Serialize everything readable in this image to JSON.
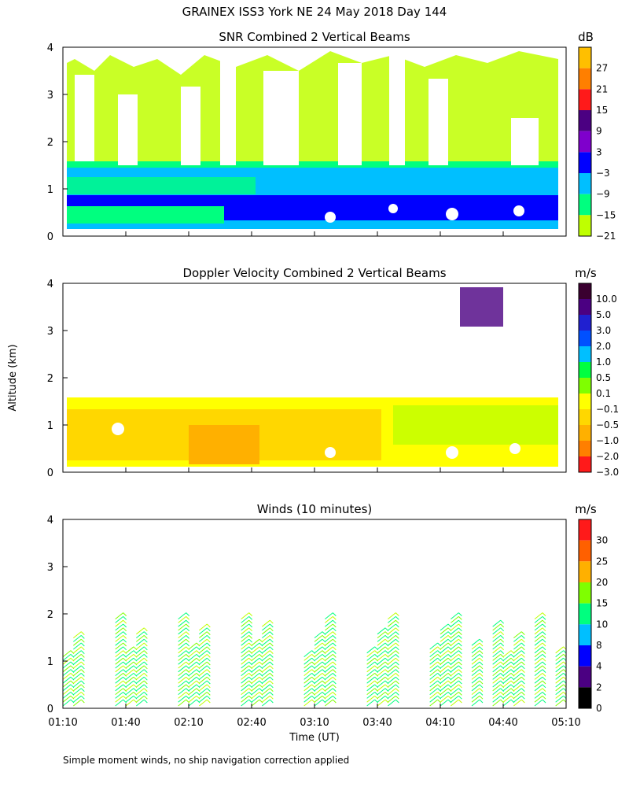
{
  "figure": {
    "title": "GRAINEX ISS3 York NE  24 May 2018 Day 144",
    "footnote": "Simple moment winds, no ship navigation correction applied",
    "ylabel": "Altitude (km)",
    "xlabel": "Time (UT)",
    "xticks": [
      "01:10",
      "01:40",
      "02:10",
      "02:40",
      "03:10",
      "03:40",
      "04:10",
      "04:40",
      "05:10"
    ]
  },
  "chart_data": [
    {
      "type": "heatmap",
      "title": "SNR Combined 2 Vertical Beams",
      "xlabel": "Time (UT)",
      "ylabel": "Altitude (km)",
      "xlim": [
        "01:10",
        "05:10"
      ],
      "ylim": [
        0,
        4
      ],
      "yticks": [
        "0",
        "1",
        "2",
        "3",
        "4"
      ],
      "colorbar": {
        "unit": "dB",
        "labels": [
          "27",
          "21",
          "15",
          "9",
          "3",
          "−3",
          "−9",
          "−15",
          "−21"
        ],
        "colors": [
          "#ffbf00",
          "#ff7f00",
          "#ff1a1a",
          "#4b0082",
          "#7f00cc",
          "#0000ff",
          "#00bfff",
          "#00ff7f",
          "#bfff00"
        ]
      },
      "description_layers": [
        {
          "altitude_km": [
            0.1,
            0.5
          ],
          "dominant_db": -3
        },
        {
          "altitude_km": [
            0.5,
            1.5
          ],
          "dominant_db": -9
        },
        {
          "altitude_km": [
            1.5,
            4.0
          ],
          "dominant_db": -21
        }
      ]
    },
    {
      "type": "heatmap",
      "title": "Doppler Velocity Combined 2 Vertical Beams",
      "xlabel": "Time (UT)",
      "ylabel": "Altitude (km)",
      "xlim": [
        "01:10",
        "05:10"
      ],
      "ylim": [
        0,
        4
      ],
      "yticks": [
        "0",
        "1",
        "2",
        "3",
        "4"
      ],
      "colorbar": {
        "unit": "m/s",
        "labels": [
          "10.0",
          "5.0",
          "3.0",
          "2.0",
          "1.0",
          "0.5",
          "0.1",
          "−0.1",
          "−0.5",
          "−1.0",
          "−2.0",
          "−3.0"
        ],
        "colors": [
          "#3a0030",
          "#4b0082",
          "#2020d0",
          "#0050ff",
          "#00bfff",
          "#00ff40",
          "#7fff00",
          "#ffff00",
          "#ffd700",
          "#ffb000",
          "#ff7f00",
          "#ff1a1a"
        ]
      }
    },
    {
      "type": "scatter",
      "title": "Winds (10 minutes)",
      "xlabel": "Time (UT)",
      "ylabel": "Altitude (km)",
      "xlim": [
        "01:10",
        "05:10"
      ],
      "ylim": [
        0,
        4
      ],
      "yticks": [
        "0",
        "1",
        "2",
        "3",
        "4"
      ],
      "colorbar": {
        "unit": "m/s",
        "labels": [
          "30",
          "25",
          "20",
          "15",
          "10",
          "8",
          "4",
          "2",
          "0"
        ],
        "colors": [
          "#ff1a1a",
          "#ff6000",
          "#ffb000",
          "#7fff00",
          "#00ff7f",
          "#00bfff",
          "#0000ff",
          "#4b0082",
          "#000000"
        ]
      },
      "profile_times": [
        "01:10",
        "01:15",
        "01:35",
        "01:40",
        "01:45",
        "02:05",
        "02:10",
        "02:15",
        "02:35",
        "02:40",
        "02:45",
        "03:05",
        "03:10",
        "03:15",
        "03:35",
        "03:40",
        "03:45",
        "04:05",
        "04:10",
        "04:15",
        "04:25",
        "04:35",
        "04:40",
        "04:45",
        "04:55",
        "05:05"
      ]
    }
  ]
}
